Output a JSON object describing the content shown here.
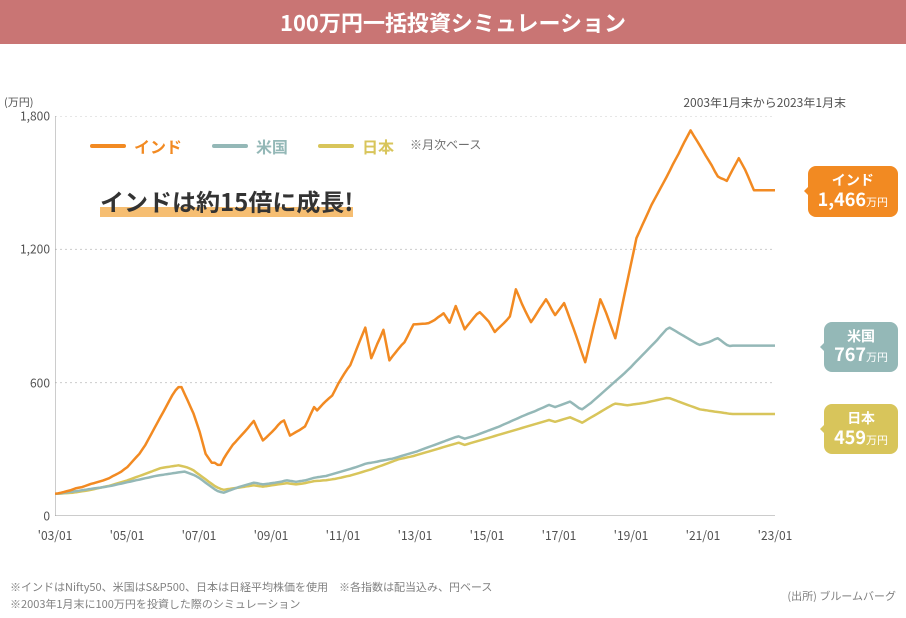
{
  "header": {
    "title": "100万円一括投資シミュレーション"
  },
  "meta": {
    "y_unit": "(万円)",
    "period_note": "2003年1月末から2023年1月末",
    "monthly_note": "※月次ベース",
    "headline": "インドは約15倍に成長!",
    "source_label": "(出所) ブルームバーグ",
    "footnote1": "※インドはNifty50、米国はS&P500、日本は日経平均株価を使用　※各指数は配当込み、円ベース",
    "footnote2": "※2003年1月末に100万円を投資した際のシミュレーション"
  },
  "chart": {
    "type": "line",
    "background_color": "#ffffff",
    "grid_color": "#cccccc",
    "axis_color": "#999999",
    "ylim": [
      0,
      1800
    ],
    "ytick_step": 600,
    "x_labels": [
      "'03/01",
      "'05/01",
      "'07/01",
      "'09/01",
      "'11/01",
      "'13/01",
      "'15/01",
      "'17/01",
      "'19/01",
      "'21/01",
      "'23/01"
    ],
    "x_months": 240,
    "line_width": 2.5,
    "font": {
      "tick_size": 12,
      "tick_color": "#525252"
    }
  },
  "series": {
    "india": {
      "label": "インド",
      "color": "#f28a22",
      "final_value": 1466,
      "data": [
        100,
        102,
        105,
        108,
        112,
        115,
        120,
        125,
        128,
        130,
        135,
        140,
        145,
        148,
        152,
        156,
        160,
        165,
        170,
        178,
        185,
        192,
        200,
        210,
        220,
        235,
        250,
        265,
        280,
        300,
        320,
        345,
        370,
        395,
        420,
        445,
        470,
        495,
        520,
        545,
        565,
        580,
        580,
        550,
        520,
        490,
        460,
        420,
        380,
        330,
        280,
        260,
        240,
        240,
        230,
        230,
        258,
        280,
        300,
        320,
        335,
        350,
        365,
        380,
        395,
        412,
        428,
        398,
        368,
        340,
        352,
        365,
        378,
        392,
        408,
        422,
        430,
        395,
        362,
        370,
        378,
        385,
        394,
        403,
        432,
        462,
        490,
        475,
        490,
        505,
        518,
        530,
        542,
        568,
        595,
        618,
        640,
        660,
        678,
        712,
        748,
        782,
        815,
        848,
        778,
        710,
        742,
        775,
        805,
        838,
        770,
        700,
        718,
        735,
        752,
        768,
        782,
        808,
        836,
        862,
        863,
        864,
        865,
        866,
        868,
        875,
        882,
        893,
        902,
        912,
        892,
        870,
        908,
        945,
        910,
        875,
        840,
        858,
        875,
        892,
        908,
        917,
        903,
        889,
        875,
        852,
        828,
        842,
        855,
        868,
        882,
        898,
        958,
        1020,
        988,
        955,
        925,
        898,
        872,
        892,
        913,
        935,
        955,
        975,
        952,
        926,
        904,
        922,
        940,
        958,
        922,
        885,
        848,
        810,
        770,
        730,
        692,
        748,
        805,
        862,
        918,
        975,
        945,
        912,
        875,
        838,
        800,
        862,
        930,
        995,
        1058,
        1122,
        1185,
        1250,
        1280,
        1310,
        1340,
        1370,
        1400,
        1425,
        1450,
        1475,
        1500,
        1525,
        1552,
        1580,
        1605,
        1630,
        1658,
        1685,
        1710,
        1735,
        1712,
        1690,
        1668,
        1645,
        1622,
        1600,
        1578,
        1552,
        1528,
        1520,
        1515,
        1508,
        1534,
        1560,
        1585,
        1610,
        1585,
        1560,
        1530,
        1498,
        1466,
        1466,
        1466,
        1466,
        1466,
        1466,
        1466,
        1466
      ]
    },
    "usa": {
      "label": "米国",
      "color": "#94b8b7",
      "final_value": 767,
      "data": [
        100,
        101,
        102,
        104,
        106,
        108,
        110,
        112,
        114,
        116,
        118,
        120,
        122,
        124,
        126,
        128,
        130,
        132,
        134,
        137,
        140,
        143,
        146,
        149,
        152,
        155,
        158,
        161,
        164,
        167,
        170,
        173,
        176,
        179,
        182,
        184,
        186,
        188,
        190,
        192,
        194,
        196,
        198,
        200,
        195,
        190,
        185,
        178,
        170,
        160,
        150,
        140,
        130,
        120,
        112,
        108,
        105,
        110,
        115,
        120,
        125,
        130,
        134,
        138,
        142,
        146,
        150,
        148,
        145,
        142,
        144,
        146,
        148,
        150,
        152,
        154,
        158,
        160,
        158,
        156,
        154,
        156,
        158,
        160,
        164,
        168,
        172,
        174,
        176,
        178,
        180,
        184,
        188,
        192,
        196,
        200,
        204,
        208,
        212,
        216,
        220,
        225,
        230,
        235,
        238,
        240,
        242,
        245,
        248,
        250,
        253,
        256,
        258,
        262,
        266,
        270,
        274,
        278,
        282,
        286,
        290,
        295,
        300,
        305,
        310,
        315,
        320,
        325,
        330,
        335,
        340,
        345,
        350,
        355,
        358,
        353,
        348,
        352,
        356,
        360,
        365,
        370,
        375,
        380,
        385,
        390,
        395,
        400,
        406,
        412,
        418,
        424,
        430,
        436,
        442,
        448,
        454,
        460,
        465,
        470,
        476,
        482,
        488,
        494,
        500,
        495,
        490,
        495,
        500,
        505,
        510,
        515,
        505,
        495,
        485,
        480,
        490,
        500,
        510,
        522,
        534,
        546,
        558,
        570,
        582,
        594,
        606,
        618,
        630,
        642,
        655,
        668,
        682,
        696,
        710,
        724,
        738,
        752,
        766,
        780,
        794,
        810,
        825,
        840,
        848,
        840,
        832,
        824,
        816,
        808,
        800,
        792,
        784,
        776,
        770,
        774,
        778,
        782,
        788,
        795,
        800,
        790,
        780,
        770,
        765,
        767,
        767,
        767,
        767,
        767,
        767,
        767,
        767,
        767,
        767,
        767,
        767,
        767,
        767,
        767
      ]
    },
    "japan": {
      "label": "日本",
      "color": "#d8c55b",
      "final_value": 459,
      "data": [
        100,
        100,
        101,
        102,
        103,
        104,
        105,
        107,
        109,
        111,
        113,
        115,
        118,
        121,
        124,
        127,
        130,
        133,
        136,
        140,
        144,
        148,
        152,
        156,
        160,
        165,
        170,
        175,
        180,
        185,
        190,
        195,
        200,
        205,
        210,
        215,
        218,
        220,
        222,
        224,
        226,
        228,
        225,
        222,
        218,
        212,
        205,
        195,
        185,
        175,
        165,
        155,
        145,
        135,
        128,
        122,
        118,
        120,
        122,
        124,
        126,
        128,
        130,
        132,
        134,
        136,
        138,
        136,
        134,
        132,
        134,
        136,
        138,
        140,
        142,
        144,
        146,
        148,
        146,
        144,
        142,
        144,
        146,
        148,
        151,
        154,
        157,
        158,
        159,
        160,
        161,
        163,
        165,
        167,
        170,
        173,
        176,
        179,
        182,
        186,
        190,
        194,
        198,
        202,
        206,
        210,
        215,
        220,
        225,
        230,
        235,
        240,
        245,
        250,
        255,
        258,
        261,
        264,
        267,
        270,
        274,
        278,
        282,
        286,
        290,
        294,
        298,
        302,
        306,
        310,
        314,
        318,
        322,
        326,
        330,
        325,
        320,
        324,
        328,
        332,
        336,
        340,
        344,
        348,
        352,
        356,
        360,
        364,
        368,
        372,
        376,
        380,
        384,
        388,
        392,
        396,
        400,
        404,
        408,
        412,
        416,
        420,
        424,
        428,
        432,
        428,
        424,
        428,
        432,
        436,
        440,
        444,
        438,
        432,
        426,
        420,
        428,
        436,
        444,
        452,
        460,
        468,
        476,
        484,
        492,
        500,
        506,
        504,
        502,
        500,
        498,
        500,
        502,
        504,
        506,
        508,
        510,
        513,
        516,
        519,
        522,
        525,
        528,
        531,
        530,
        525,
        520,
        515,
        510,
        505,
        500,
        495,
        490,
        485,
        480,
        478,
        476,
        474,
        472,
        470,
        468,
        466,
        464,
        462,
        460,
        459,
        459,
        459,
        459,
        459,
        459,
        459,
        459,
        459,
        459,
        459,
        459,
        459,
        459,
        459
      ]
    }
  },
  "callouts": {
    "india": {
      "name": "インド",
      "value": "1,466",
      "unit": "万円"
    },
    "usa": {
      "name": "米国",
      "value": "767",
      "unit": "万円"
    },
    "japan": {
      "name": "日本",
      "value": "459",
      "unit": "万円"
    }
  },
  "legend": [
    "india",
    "usa",
    "japan"
  ]
}
